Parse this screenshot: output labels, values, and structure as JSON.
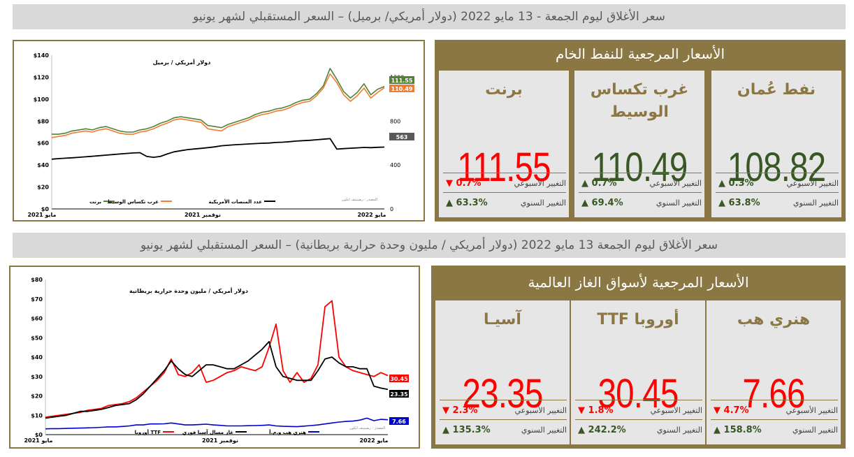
{
  "oil_banner": "سعر الأغلاق ليوم الجمعة - 13 مايو 2022 (دولار أمريكي/ برميل) – السعر المستقبلي لشهر يونيو",
  "gas_banner": "سعر الأغلاق ليوم الجمعة 13 مايو 2022 (دولار أمريكي / مليون وحدة حرارية بريطانية) – السعر المستقبلي لشهر يونيو",
  "oil_panel": {
    "title": "الأسعار المرجعية للنفط الخام",
    "weekly_label": "التغيير الأسبوعي",
    "annual_label": "التغيير السنوي",
    "cards": [
      {
        "name": "نفط عُمان",
        "value": "108.82",
        "weekly": "0.3%",
        "weekly_dir": "up",
        "annual": "63.8%",
        "annual_dir": "up",
        "value_color": "#385723"
      },
      {
        "name": "غرب تكساس الوسيط",
        "value": "110.49",
        "weekly": "0.7%",
        "weekly_dir": "up",
        "annual": "69.4%",
        "annual_dir": "up",
        "value_color": "#385723"
      },
      {
        "name": "برنت",
        "value": "111.55",
        "weekly": "0.7%",
        "weekly_dir": "down",
        "annual": "63.3%",
        "annual_dir": "up",
        "value_color": "#ff0000"
      }
    ]
  },
  "gas_panel": {
    "title": "الأسعار المرجعية لأسواق الغاز العالمية",
    "weekly_label": "التغيير الأسبوعي",
    "annual_label": "التغيير السنوي",
    "cards": [
      {
        "name": "هنري هب",
        "value": "7.66",
        "weekly": "4.7%",
        "weekly_dir": "down",
        "annual": "158.8%",
        "annual_dir": "up",
        "value_color": "#ff0000"
      },
      {
        "name": "أوروبا TTF",
        "value": "30.45",
        "weekly": "1.8%",
        "weekly_dir": "down",
        "annual": "242.2%",
        "annual_dir": "up",
        "value_color": "#ff0000"
      },
      {
        "name": "آسيـا",
        "value": "23.35",
        "weekly": "2.3%",
        "weekly_dir": "down",
        "annual": "135.3%",
        "annual_dir": "up",
        "value_color": "#ff0000"
      }
    ]
  },
  "colors": {
    "accent": "#8b7743",
    "up": "#385723",
    "down": "#ff0000"
  },
  "chart_data": [
    {
      "type": "line",
      "title": "دولار أمريكي / برميل",
      "source": "المصدر : ريفينيتف ايكون",
      "x_ticks": [
        "مايو 2021",
        "نوفمبر 2021",
        "مايو 2022"
      ],
      "y_left": {
        "ticks": [
          "$0",
          "$20",
          "$40",
          "$60",
          "$80",
          "$100",
          "$120",
          "$140"
        ],
        "range": [
          0,
          140
        ]
      },
      "y_right": {
        "ticks": [
          "0",
          "400",
          "800",
          "1200"
        ],
        "range": [
          0,
          1400
        ]
      },
      "series": [
        {
          "name": "برنت",
          "color": "#548235",
          "axis": "left",
          "last_label": "111.55",
          "values": [
            68,
            68,
            69,
            71,
            72,
            73,
            72,
            74,
            75,
            73,
            71,
            70,
            70,
            72,
            73,
            75,
            78,
            80,
            83,
            84,
            83,
            82,
            81,
            76,
            75,
            74,
            77,
            79,
            81,
            83,
            86,
            88,
            89,
            91,
            92,
            94,
            97,
            99,
            100,
            105,
            112,
            128,
            118,
            107,
            101,
            106,
            114,
            104,
            109,
            111.55
          ]
        },
        {
          "name": "غرب تكساس الوسيط",
          "color": "#ed7d31",
          "axis": "left",
          "last_label": "110.49",
          "values": [
            65,
            66,
            67,
            69,
            70,
            71,
            70,
            72,
            73,
            71,
            69,
            68,
            68,
            70,
            71,
            73,
            76,
            78,
            81,
            82,
            81,
            80,
            79,
            73,
            72,
            71,
            75,
            77,
            79,
            81,
            84,
            86,
            87,
            89,
            90,
            92,
            95,
            97,
            98,
            103,
            110,
            123,
            115,
            104,
            98,
            103,
            110,
            101,
            106,
            110.49
          ]
        },
        {
          "name": "عدد المنصات الأمريكية",
          "color": "#000000",
          "axis": "right",
          "last_label": "563",
          "values": [
            453,
            458,
            462,
            466,
            470,
            475,
            480,
            485,
            490,
            495,
            500,
            505,
            510,
            512,
            478,
            470,
            478,
            500,
            520,
            530,
            540,
            546,
            552,
            558,
            565,
            575,
            580,
            585,
            588,
            592,
            595,
            598,
            600,
            605,
            608,
            612,
            618,
            622,
            625,
            630,
            635,
            640,
            545,
            549,
            553,
            556,
            560,
            558,
            561,
            563
          ]
        }
      ]
    },
    {
      "type": "line",
      "title": "دولار أمريكي / مليون وحدة حرارية بريطانية",
      "source": "المصدر : ريفينيتف ايكون",
      "x_ticks": [
        "مايو 2021",
        "نوفمبر 2021",
        "مايو 2022"
      ],
      "y_left": {
        "ticks": [
          "$0",
          "$10",
          "$20",
          "$30",
          "$40",
          "$50",
          "$60",
          "$70",
          "$80"
        ],
        "range": [
          0,
          80
        ]
      },
      "series": [
        {
          "name": "أوروبا TTF",
          "color": "#ff0000",
          "last_label": "30.45",
          "values": [
            9,
            9.5,
            10,
            10.5,
            11,
            11.5,
            12.5,
            13,
            13.5,
            15,
            15.5,
            16,
            17,
            19,
            22,
            25,
            28,
            32,
            39,
            31,
            30,
            32,
            36,
            27,
            28,
            30,
            32,
            33,
            35,
            34,
            33,
            35,
            45,
            57,
            33,
            27,
            32,
            27,
            29,
            36,
            66,
            69,
            40,
            35,
            33,
            32,
            31,
            30,
            32,
            30.45
          ]
        },
        {
          "name": "غاز مسال آسيا فوري",
          "color": "#000000",
          "last_label": "23.35",
          "values": [
            8.5,
            9,
            9.5,
            10,
            11,
            12,
            12,
            12.5,
            13,
            14,
            15,
            15.5,
            16,
            18,
            21,
            25,
            29,
            33,
            38,
            34,
            31,
            30,
            33,
            36,
            36,
            35,
            34,
            34,
            36,
            38,
            41,
            44,
            48,
            35,
            30,
            29,
            28,
            28,
            28,
            33,
            39,
            40,
            37,
            35,
            35,
            34,
            34,
            25,
            24,
            23.35
          ]
        },
        {
          "name": "هنري هب و.م.أ",
          "color": "#0000cc",
          "last_label": "7.66",
          "values": [
            3,
            3.1,
            3.1,
            3.2,
            3.3,
            3.4,
            3.5,
            3.6,
            3.8,
            4,
            4,
            4.2,
            4.5,
            5,
            5,
            5.5,
            5.5,
            5.6,
            6,
            5.5,
            5,
            5,
            5.2,
            5.4,
            5,
            4.8,
            4.5,
            4.5,
            4.5,
            4.6,
            4.7,
            4.8,
            5,
            4.5,
            4.3,
            4.2,
            4.1,
            4.4,
            4.7,
            5,
            5.5,
            6,
            6.5,
            6.8,
            7,
            7.5,
            8.5,
            7.2,
            7.9,
            7.66
          ]
        }
      ]
    }
  ]
}
